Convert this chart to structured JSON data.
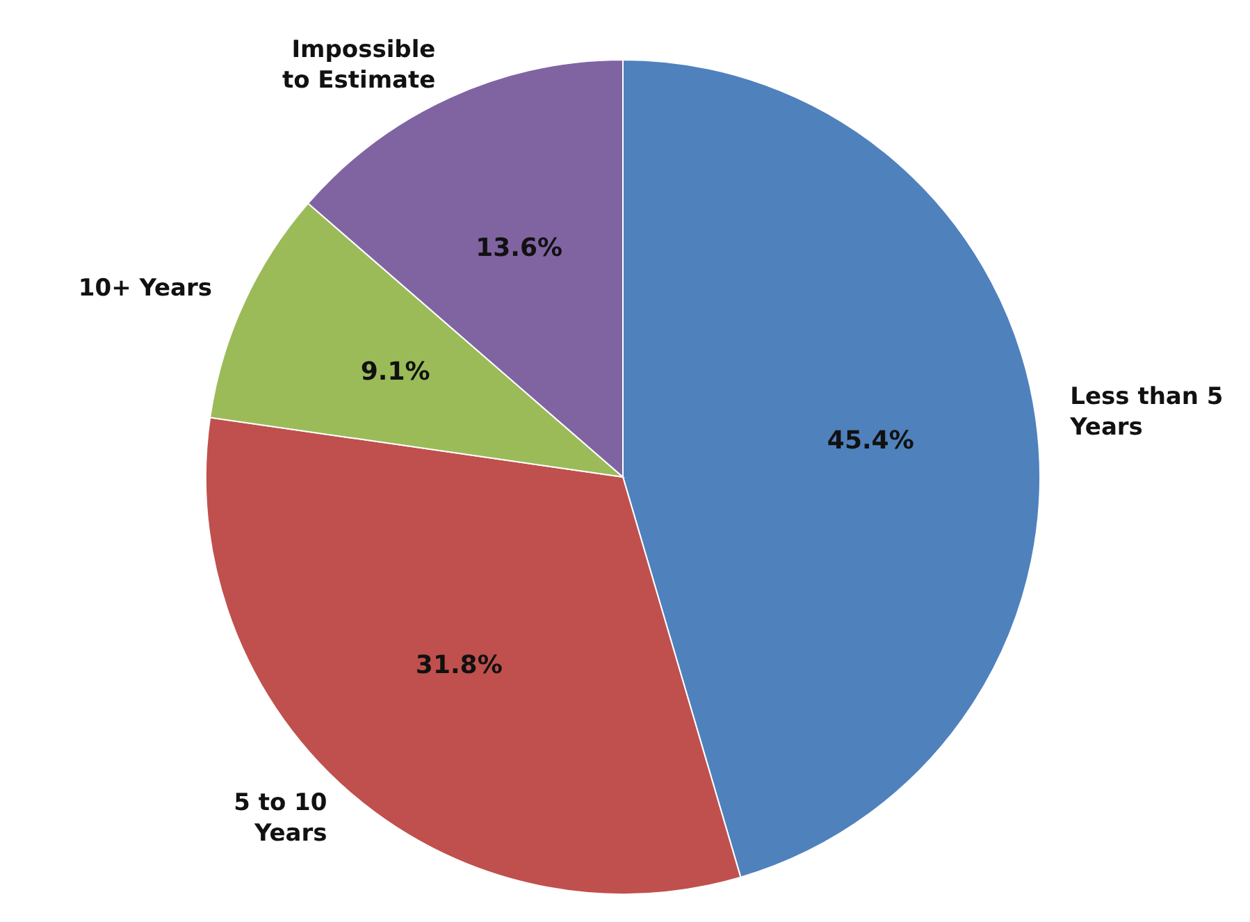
{
  "chart_data": {
    "type": "pie",
    "categories": [
      "Less than 5 Years",
      "5 to 10 Years",
      "10+ Years",
      "Impossible to Estimate"
    ],
    "values": [
      45.4,
      31.8,
      9.1,
      13.6
    ],
    "value_labels": [
      "45.4%",
      "31.8%",
      "9.1%",
      "13.6%"
    ],
    "colors": [
      "#4f81bd",
      "#c0504d",
      "#9bbb59",
      "#8064a2"
    ],
    "legend": false
  }
}
